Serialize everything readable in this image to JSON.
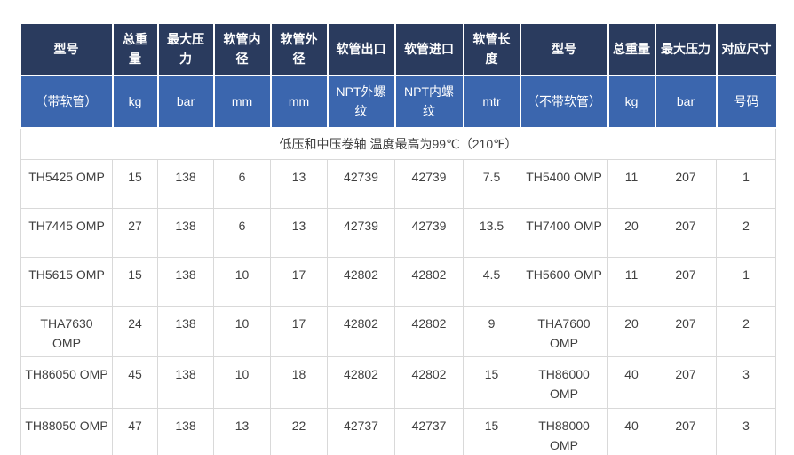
{
  "table": {
    "header_row1": [
      "型号",
      "总重量",
      "最大压力",
      "软管内径",
      "软管外径",
      "软管出口",
      "软管进口",
      "软管长度",
      "型号",
      "总重量",
      "最大压力",
      "对应尺寸"
    ],
    "header_row2": [
      "（带软管）",
      "kg",
      "bar",
      "mm",
      "mm",
      "NPT外螺纹",
      "NPT内螺纹",
      "mtr",
      "（不带软管）",
      "kg",
      "bar",
      "号码"
    ],
    "note": "低压和中压卷轴 温度最高为99℃（210℉）",
    "rows": [
      [
        "TH5425 OMP",
        "15",
        "138",
        "6",
        "13",
        "42739",
        "42739",
        "7.5",
        "TH5400 OMP",
        "11",
        "207",
        "1"
      ],
      [
        "TH7445 OMP",
        "27",
        "138",
        "6",
        "13",
        "42739",
        "42739",
        "13.5",
        "TH7400 OMP",
        "20",
        "207",
        "2"
      ],
      [
        "TH5615 OMP",
        "15",
        "138",
        "10",
        "17",
        "42802",
        "42802",
        "4.5",
        "TH5600 OMP",
        "11",
        "207",
        "1"
      ],
      [
        "THA7630 OMP",
        "24",
        "138",
        "10",
        "17",
        "42802",
        "42802",
        "9",
        "THA7600 OMP",
        "20",
        "207",
        "2"
      ],
      [
        "TH86050 OMP",
        "45",
        "138",
        "10",
        "18",
        "42802",
        "42802",
        "15",
        "TH86000 OMP",
        "40",
        "207",
        "3"
      ],
      [
        "TH88050 OMP",
        "47",
        "138",
        "13",
        "22",
        "42737",
        "42737",
        "15",
        "TH88000 OMP",
        "40",
        "207",
        "3"
      ]
    ],
    "colors": {
      "header_top_bg": "#2a3b5e",
      "header_sub_bg": "#3b66ae",
      "header_text": "#ffffff",
      "body_text": "#404040",
      "body_border": "#d9d9d9"
    }
  }
}
